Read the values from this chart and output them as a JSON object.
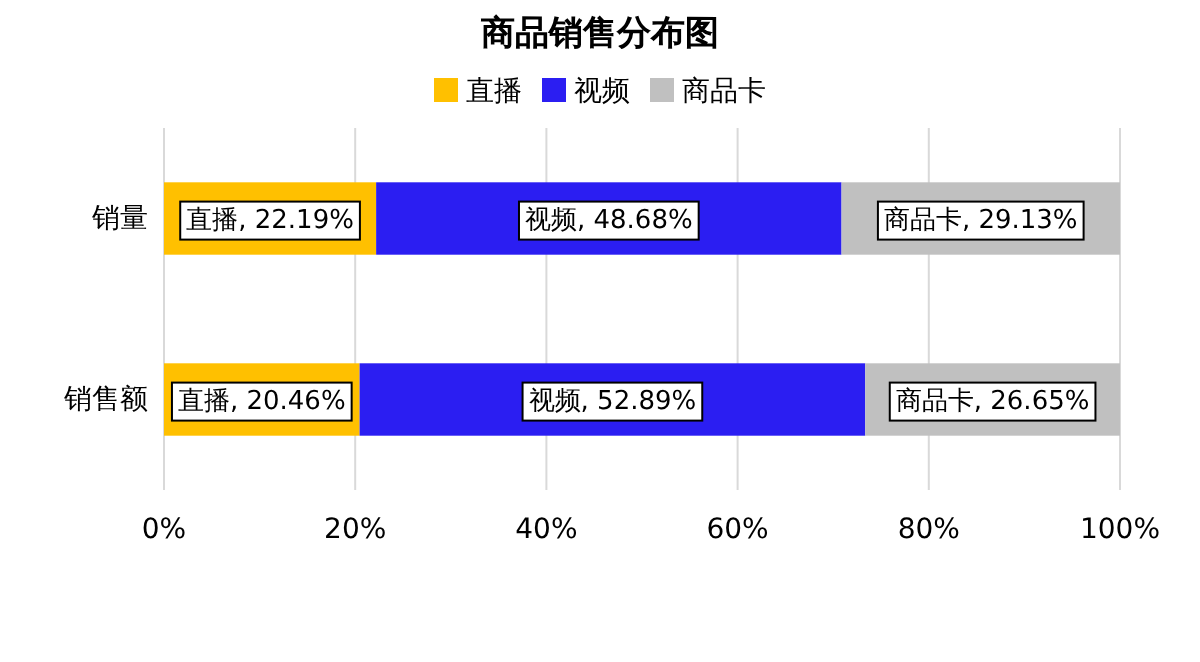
{
  "chart_data": {
    "type": "bar",
    "title": "商品销售分布图",
    "orientation": "horizontal",
    "stacked": true,
    "categories": [
      "销量",
      "销售额"
    ],
    "series": [
      {
        "name": "直播",
        "color": "#ffc000",
        "values": [
          22.19,
          20.46
        ],
        "value_labels": [
          "直播, 22.19%",
          "直播, 20.46%"
        ]
      },
      {
        "name": "视频",
        "color": "#2b1ef2",
        "values": [
          48.68,
          52.89
        ],
        "value_labels": [
          "视频, 48.68%",
          "视频, 52.89%"
        ]
      },
      {
        "name": "商品卡",
        "color": "#c0c0c0",
        "values": [
          29.13,
          26.65
        ],
        "value_labels": [
          "商品卡, 29.13%",
          "商品卡, 26.65%"
        ]
      }
    ],
    "xlim": [
      0,
      100
    ],
    "xticks": [
      {
        "value": 0,
        "label": "0%"
      },
      {
        "value": 20,
        "label": "20%"
      },
      {
        "value": 40,
        "label": "40%"
      },
      {
        "value": 60,
        "label": "60%"
      },
      {
        "value": 80,
        "label": "80%"
      },
      {
        "value": 100,
        "label": "100%"
      }
    ],
    "grid": "x",
    "legend": "top"
  }
}
